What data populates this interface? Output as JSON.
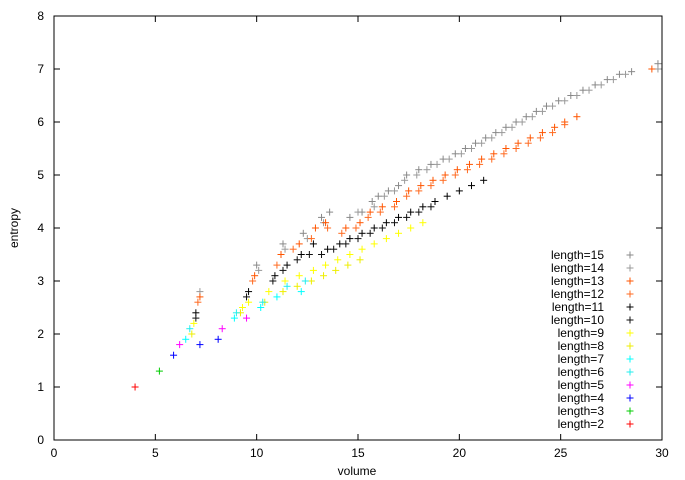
{
  "chart_data": {
    "type": "scatter",
    "xlabel": "volume",
    "ylabel": "entropy",
    "xlim": [
      0,
      30
    ],
    "ylim": [
      0,
      8
    ],
    "xticks": [
      0,
      5,
      10,
      15,
      20,
      25,
      30
    ],
    "yticks": [
      0,
      1,
      2,
      3,
      4,
      5,
      6,
      7,
      8
    ],
    "grid": false,
    "legend_position": "bottom-right",
    "marker": "+",
    "series": [
      {
        "name": "length=15",
        "color": "#888888",
        "points": [
          [
            10.0,
            3.3
          ],
          [
            11.3,
            3.7
          ],
          [
            12.3,
            3.9
          ],
          [
            13.2,
            4.2
          ],
          [
            13.6,
            4.3
          ],
          [
            14.6,
            4.2
          ],
          [
            15.2,
            4.3
          ],
          [
            15.7,
            4.5
          ],
          [
            16.0,
            4.6
          ],
          [
            16.5,
            4.7
          ],
          [
            17.0,
            4.8
          ],
          [
            17.4,
            5.0
          ],
          [
            18.0,
            5.1
          ],
          [
            18.6,
            5.2
          ],
          [
            19.2,
            5.3
          ],
          [
            19.8,
            5.4
          ],
          [
            20.3,
            5.5
          ],
          [
            20.8,
            5.6
          ],
          [
            21.3,
            5.7
          ],
          [
            21.8,
            5.8
          ],
          [
            22.3,
            5.9
          ],
          [
            22.8,
            6.0
          ],
          [
            23.3,
            6.1
          ],
          [
            23.8,
            6.2
          ],
          [
            24.3,
            6.3
          ],
          [
            24.9,
            6.4
          ],
          [
            25.5,
            6.5
          ],
          [
            26.1,
            6.6
          ],
          [
            26.7,
            6.7
          ],
          [
            27.3,
            6.8
          ],
          [
            27.9,
            6.9
          ],
          [
            28.5,
            6.95
          ],
          [
            29.8,
            7.1
          ]
        ]
      },
      {
        "name": "length=14",
        "color": "#999999",
        "points": [
          [
            7.2,
            2.8
          ],
          [
            10.1,
            3.2
          ],
          [
            11.4,
            3.6
          ],
          [
            12.5,
            3.8
          ],
          [
            13.3,
            4.1
          ],
          [
            15.0,
            4.3
          ],
          [
            15.8,
            4.4
          ],
          [
            16.3,
            4.6
          ],
          [
            16.8,
            4.7
          ],
          [
            17.3,
            4.9
          ],
          [
            17.9,
            5.0
          ],
          [
            18.4,
            5.1
          ],
          [
            18.9,
            5.2
          ],
          [
            19.5,
            5.3
          ],
          [
            20.1,
            5.4
          ],
          [
            20.6,
            5.5
          ],
          [
            21.1,
            5.6
          ],
          [
            21.6,
            5.7
          ],
          [
            22.1,
            5.8
          ],
          [
            22.6,
            5.9
          ],
          [
            23.1,
            6.0
          ],
          [
            23.6,
            6.1
          ],
          [
            24.1,
            6.2
          ],
          [
            24.6,
            6.3
          ],
          [
            25.2,
            6.4
          ],
          [
            25.8,
            6.5
          ],
          [
            26.4,
            6.6
          ],
          [
            27.0,
            6.7
          ],
          [
            27.6,
            6.8
          ],
          [
            28.2,
            6.9
          ],
          [
            29.8,
            7.0
          ]
        ]
      },
      {
        "name": "length=13",
        "color": "#ff5500",
        "points": [
          [
            7.2,
            2.7
          ],
          [
            9.9,
            3.1
          ],
          [
            11.2,
            3.5
          ],
          [
            12.1,
            3.7
          ],
          [
            12.9,
            4.0
          ],
          [
            13.4,
            4.1
          ],
          [
            14.4,
            4.0
          ],
          [
            15.1,
            4.1
          ],
          [
            15.6,
            4.3
          ],
          [
            16.2,
            4.4
          ],
          [
            16.9,
            4.5
          ],
          [
            17.5,
            4.7
          ],
          [
            18.1,
            4.8
          ],
          [
            18.7,
            4.9
          ],
          [
            19.3,
            5.0
          ],
          [
            19.9,
            5.1
          ],
          [
            20.5,
            5.2
          ],
          [
            21.1,
            5.3
          ],
          [
            21.7,
            5.4
          ],
          [
            22.3,
            5.5
          ],
          [
            22.9,
            5.6
          ],
          [
            23.5,
            5.7
          ],
          [
            24.1,
            5.8
          ],
          [
            24.7,
            5.9
          ],
          [
            25.2,
            6.0
          ],
          [
            25.8,
            6.1
          ],
          [
            29.5,
            7.0
          ]
        ]
      },
      {
        "name": "length=12",
        "color": "#ff6a20",
        "points": [
          [
            7.1,
            2.6
          ],
          [
            9.8,
            3.0
          ],
          [
            11.0,
            3.3
          ],
          [
            11.8,
            3.6
          ],
          [
            12.7,
            3.8
          ],
          [
            13.5,
            4.0
          ],
          [
            14.2,
            3.9
          ],
          [
            14.9,
            4.0
          ],
          [
            15.5,
            4.2
          ],
          [
            16.1,
            4.3
          ],
          [
            16.8,
            4.4
          ],
          [
            17.4,
            4.6
          ],
          [
            18.0,
            4.7
          ],
          [
            18.6,
            4.8
          ],
          [
            19.2,
            4.9
          ],
          [
            19.8,
            5.0
          ],
          [
            20.4,
            5.1
          ],
          [
            21.0,
            5.2
          ],
          [
            21.6,
            5.3
          ],
          [
            22.2,
            5.4
          ],
          [
            22.8,
            5.5
          ],
          [
            23.4,
            5.6
          ],
          [
            24.0,
            5.7
          ],
          [
            24.6,
            5.8
          ],
          [
            25.2,
            5.95
          ]
        ]
      },
      {
        "name": "length=11",
        "color": "#000000",
        "points": [
          [
            7.0,
            2.4
          ],
          [
            9.6,
            2.8
          ],
          [
            10.9,
            3.1
          ],
          [
            11.5,
            3.3
          ],
          [
            12.2,
            3.5
          ],
          [
            12.8,
            3.7
          ],
          [
            13.5,
            3.6
          ],
          [
            14.1,
            3.7
          ],
          [
            14.6,
            3.8
          ],
          [
            15.2,
            3.9
          ],
          [
            15.8,
            4.0
          ],
          [
            16.4,
            4.1
          ],
          [
            17.0,
            4.2
          ],
          [
            17.6,
            4.3
          ],
          [
            18.2,
            4.4
          ],
          [
            18.8,
            4.5
          ],
          [
            19.4,
            4.6
          ],
          [
            20.0,
            4.7
          ],
          [
            20.6,
            4.8
          ],
          [
            21.2,
            4.9
          ]
        ]
      },
      {
        "name": "length=10",
        "color": "#111111",
        "points": [
          [
            7.0,
            2.3
          ],
          [
            9.5,
            2.7
          ],
          [
            10.8,
            3.0
          ],
          [
            11.3,
            3.2
          ],
          [
            12.0,
            3.4
          ],
          [
            12.6,
            3.5
          ],
          [
            13.2,
            3.5
          ],
          [
            13.8,
            3.6
          ],
          [
            14.4,
            3.7
          ],
          [
            15.0,
            3.8
          ],
          [
            15.6,
            3.9
          ],
          [
            16.2,
            4.0
          ],
          [
            16.8,
            4.1
          ],
          [
            17.4,
            4.2
          ],
          [
            18.0,
            4.3
          ],
          [
            18.6,
            4.4
          ]
        ]
      },
      {
        "name": "length=9",
        "color": "#ffff00",
        "points": [
          [
            6.9,
            2.2
          ],
          [
            9.3,
            2.5
          ],
          [
            9.6,
            2.6
          ],
          [
            10.6,
            2.8
          ],
          [
            11.4,
            3.0
          ],
          [
            12.1,
            3.1
          ],
          [
            12.8,
            3.2
          ],
          [
            13.4,
            3.3
          ],
          [
            14.0,
            3.4
          ],
          [
            14.6,
            3.5
          ],
          [
            15.2,
            3.6
          ],
          [
            15.8,
            3.7
          ],
          [
            16.4,
            3.8
          ],
          [
            17.0,
            3.9
          ],
          [
            17.6,
            4.0
          ],
          [
            18.2,
            4.1
          ]
        ]
      },
      {
        "name": "length=8",
        "color": "#eeee00",
        "points": [
          [
            6.8,
            2.0
          ],
          [
            9.2,
            2.4
          ],
          [
            10.4,
            2.6
          ],
          [
            11.3,
            2.8
          ],
          [
            12.0,
            2.9
          ],
          [
            12.7,
            3.0
          ],
          [
            13.3,
            3.1
          ],
          [
            13.9,
            3.2
          ],
          [
            14.5,
            3.3
          ],
          [
            15.1,
            3.4
          ]
        ]
      },
      {
        "name": "length=7",
        "color": "#00ffff",
        "points": [
          [
            6.5,
            1.9
          ],
          [
            8.9,
            2.3
          ],
          [
            10.2,
            2.5
          ],
          [
            11.0,
            2.7
          ],
          [
            12.2,
            2.8
          ]
        ]
      },
      {
        "name": "length=6",
        "color": "#22eeee",
        "points": [
          [
            6.7,
            2.1
          ],
          [
            9.0,
            2.4
          ],
          [
            10.3,
            2.6
          ],
          [
            11.5,
            2.9
          ],
          [
            12.4,
            3.0
          ]
        ]
      },
      {
        "name": "length=5",
        "color": "#ff00ff",
        "points": [
          [
            6.2,
            1.8
          ],
          [
            8.3,
            2.1
          ],
          [
            9.5,
            2.3
          ]
        ]
      },
      {
        "name": "length=4",
        "color": "#0000ff",
        "points": [
          [
            5.9,
            1.6
          ],
          [
            7.2,
            1.8
          ],
          [
            8.1,
            1.9
          ]
        ]
      },
      {
        "name": "length=3",
        "color": "#00cc00",
        "points": [
          [
            5.2,
            1.3
          ]
        ]
      },
      {
        "name": "length=2",
        "color": "#ff0000",
        "points": [
          [
            4.0,
            1.0
          ]
        ]
      }
    ]
  }
}
